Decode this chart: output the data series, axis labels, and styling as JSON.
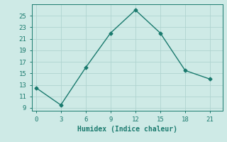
{
  "x": [
    0,
    3,
    6,
    9,
    12,
    15,
    18,
    21
  ],
  "y": [
    12.5,
    9.5,
    16.0,
    22.0,
    26.0,
    22.0,
    15.5,
    14.0
  ],
  "xlabel": "Humidex (Indice chaleur)",
  "xlim": [
    -0.5,
    22.5
  ],
  "ylim": [
    8.5,
    27
  ],
  "xticks": [
    0,
    3,
    6,
    9,
    12,
    15,
    18,
    21
  ],
  "yticks": [
    9,
    11,
    13,
    15,
    17,
    19,
    21,
    23,
    25
  ],
  "line_color": "#1a7a6e",
  "marker": "D",
  "marker_size": 2.5,
  "bg_color": "#ceeae6",
  "grid_color": "#b0d4d0",
  "font_color": "#1a7a6e",
  "font_family": "monospace",
  "linewidth": 1.0,
  "tick_labelsize": 6.5,
  "xlabel_fontsize": 7.0
}
